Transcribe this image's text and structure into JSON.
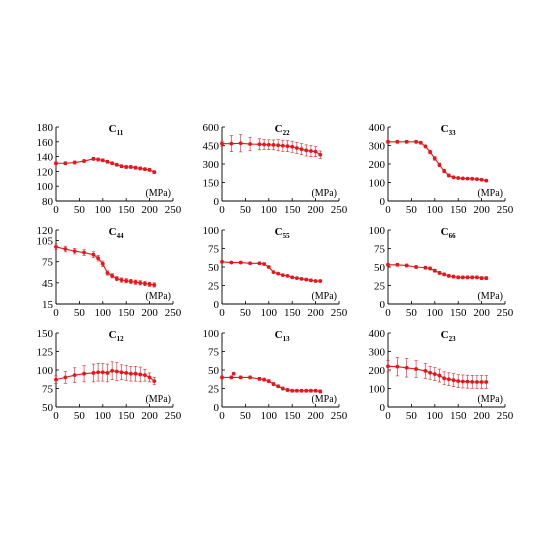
{
  "colors": {
    "series": "#e8151b",
    "error": "#e8151b",
    "axis": "#000000"
  },
  "chart_data": [
    {
      "type": "line",
      "title": "C",
      "subscript": "11",
      "xlabel": "(MPa)",
      "xlim": [
        0,
        250
      ],
      "xticks": [
        0,
        50,
        100,
        150,
        200,
        250
      ],
      "ylim": [
        80,
        180
      ],
      "yticks": [
        80,
        100,
        120,
        140,
        160,
        180
      ],
      "grid": false,
      "legend": "none",
      "series": [
        {
          "x": [
            0,
            20,
            40,
            60,
            80,
            90,
            100,
            110,
            120,
            130,
            140,
            150,
            160,
            170,
            180,
            190,
            200,
            210
          ],
          "y": [
            131,
            131,
            132,
            134,
            137,
            136,
            135,
            133,
            131,
            129,
            127,
            126,
            126,
            125,
            124,
            123,
            122,
            119
          ],
          "err": [
            2,
            2,
            2,
            2,
            2,
            2,
            2,
            2,
            2,
            2,
            2,
            2,
            2,
            2,
            2,
            2,
            2,
            2
          ]
        }
      ]
    },
    {
      "type": "line",
      "title": "C",
      "subscript": "22",
      "xlabel": "(MPa)",
      "xlim": [
        0,
        250
      ],
      "xticks": [
        0,
        50,
        100,
        150,
        200,
        250
      ],
      "ylim": [
        0,
        600
      ],
      "yticks": [
        0,
        150,
        300,
        450,
        600
      ],
      "grid": false,
      "legend": "none",
      "series": [
        {
          "x": [
            0,
            20,
            40,
            60,
            80,
            90,
            100,
            110,
            120,
            130,
            140,
            150,
            160,
            170,
            180,
            190,
            200,
            210
          ],
          "y": [
            465,
            465,
            468,
            462,
            460,
            458,
            456,
            455,
            452,
            448,
            445,
            440,
            430,
            420,
            410,
            405,
            400,
            375
          ],
          "err": [
            20,
            65,
            70,
            55,
            45,
            40,
            40,
            40,
            45,
            45,
            45,
            45,
            45,
            45,
            45,
            45,
            40,
            30
          ]
        }
      ]
    },
    {
      "type": "line",
      "title": "C",
      "subscript": "33",
      "xlabel": "(MPa)",
      "xlim": [
        0,
        250
      ],
      "xticks": [
        0,
        50,
        100,
        150,
        200,
        250
      ],
      "ylim": [
        0,
        400
      ],
      "yticks": [
        0,
        100,
        200,
        300,
        400
      ],
      "grid": false,
      "legend": "none",
      "series": [
        {
          "x": [
            0,
            20,
            40,
            60,
            70,
            80,
            90,
            100,
            110,
            120,
            130,
            140,
            150,
            160,
            170,
            180,
            190,
            200,
            210
          ],
          "y": [
            320,
            320,
            320,
            320,
            315,
            295,
            265,
            230,
            195,
            162,
            138,
            128,
            124,
            122,
            121,
            120,
            118,
            115,
            110
          ],
          "err": [
            8,
            8,
            8,
            8,
            8,
            8,
            10,
            10,
            10,
            10,
            8,
            6,
            6,
            6,
            6,
            6,
            6,
            6,
            6
          ]
        }
      ]
    },
    {
      "type": "line",
      "title": "C",
      "subscript": "44",
      "xlabel": "(MPa)",
      "xlim": [
        0,
        250
      ],
      "xticks": [
        0,
        50,
        100,
        150,
        200,
        250
      ],
      "ylim": [
        15,
        120
      ],
      "yticks": [
        15,
        45,
        75,
        105,
        120
      ],
      "grid": false,
      "legend": "none",
      "series": [
        {
          "x": [
            0,
            20,
            40,
            60,
            80,
            90,
            100,
            110,
            120,
            130,
            140,
            150,
            160,
            170,
            180,
            190,
            200,
            210
          ],
          "y": [
            96,
            93,
            90,
            88,
            85,
            80,
            72,
            59,
            55,
            51,
            49,
            48,
            47,
            46,
            45,
            44,
            43,
            42
          ],
          "err": [
            4,
            4,
            4,
            4,
            4,
            4,
            4,
            3,
            3,
            3,
            3,
            3,
            3,
            3,
            3,
            3,
            3,
            3
          ]
        }
      ]
    },
    {
      "type": "line",
      "title": "C",
      "subscript": "55",
      "xlabel": "(MPa)",
      "xlim": [
        0,
        250
      ],
      "xticks": [
        0,
        50,
        100,
        150,
        200,
        250
      ],
      "ylim": [
        0,
        100
      ],
      "yticks": [
        0,
        25,
        50,
        75,
        100
      ],
      "grid": false,
      "legend": "none",
      "series": [
        {
          "x": [
            0,
            20,
            40,
            60,
            80,
            90,
            100,
            110,
            120,
            130,
            140,
            150,
            160,
            170,
            180,
            190,
            200,
            210
          ],
          "y": [
            57,
            56,
            56,
            55,
            55,
            54,
            50,
            43,
            41,
            39,
            38,
            36,
            35,
            34,
            33,
            32,
            31,
            31
          ],
          "err": [
            1.5,
            1.5,
            1.5,
            1.5,
            1.5,
            1.5,
            1.5,
            1.5,
            1.5,
            1.5,
            1.5,
            1.5,
            1.5,
            1.5,
            1.5,
            1.5,
            1.5,
            1.5
          ]
        }
      ]
    },
    {
      "type": "line",
      "title": "C",
      "subscript": "66",
      "xlabel": "(MPa)",
      "xlim": [
        0,
        250
      ],
      "xticks": [
        0,
        50,
        100,
        150,
        200,
        250
      ],
      "ylim": [
        0,
        100
      ],
      "yticks": [
        0,
        25,
        50,
        75,
        100
      ],
      "grid": false,
      "legend": "none",
      "series": [
        {
          "x": [
            0,
            20,
            40,
            60,
            80,
            90,
            100,
            110,
            120,
            130,
            140,
            150,
            160,
            170,
            180,
            190,
            200,
            210
          ],
          "y": [
            53,
            53,
            52,
            50,
            49,
            48,
            45,
            42,
            40,
            38,
            37,
            36,
            36,
            36,
            36,
            36,
            35,
            35
          ],
          "err": [
            2,
            2,
            2,
            2,
            2,
            2,
            2,
            2,
            2,
            2,
            2,
            2,
            2,
            2,
            2,
            2,
            2,
            2
          ]
        }
      ]
    },
    {
      "type": "line",
      "title": "C",
      "subscript": "12",
      "xlabel": "(MPa)",
      "xlim": [
        0,
        250
      ],
      "xticks": [
        0,
        50,
        100,
        150,
        200,
        250
      ],
      "ylim": [
        50,
        150
      ],
      "yticks": [
        50,
        75,
        100,
        125,
        150
      ],
      "grid": false,
      "legend": "none",
      "series": [
        {
          "x": [
            0,
            20,
            40,
            60,
            80,
            90,
            100,
            110,
            120,
            130,
            140,
            150,
            160,
            170,
            180,
            190,
            200,
            210
          ],
          "y": [
            87,
            90,
            93,
            95,
            96,
            97,
            97,
            96,
            99,
            98,
            97,
            96,
            95,
            95,
            94,
            93,
            90,
            85
          ],
          "err": [
            5,
            8,
            10,
            11,
            12,
            12,
            12,
            12,
            12,
            12,
            10,
            10,
            10,
            10,
            10,
            8,
            6,
            5
          ]
        }
      ]
    },
    {
      "type": "line",
      "title": "C",
      "subscript": "13",
      "xlabel": "(MPa)",
      "xlim": [
        0,
        250
      ],
      "xticks": [
        0,
        50,
        100,
        150,
        200,
        250
      ],
      "ylim": [
        0,
        100
      ],
      "yticks": [
        0,
        25,
        50,
        75,
        100
      ],
      "grid": false,
      "legend": "none",
      "series": [
        {
          "x": [
            0,
            20,
            40,
            60,
            80,
            90,
            100,
            110,
            120,
            130,
            140,
            150,
            160,
            170,
            180,
            190,
            200,
            210
          ],
          "y": [
            40,
            40,
            40,
            40,
            38,
            37,
            35,
            31,
            28,
            25,
            23,
            22,
            22,
            22,
            22,
            22,
            22,
            21
          ],
          "err": [
            2,
            2,
            2,
            2,
            2,
            2,
            2,
            2,
            2,
            2,
            2,
            2,
            2,
            2,
            2,
            2,
            2,
            2
          ]
        }
      ],
      "extra_points": [
        {
          "x": 25,
          "y": 45
        }
      ]
    },
    {
      "type": "line",
      "title": "C",
      "subscript": "23",
      "xlabel": "(MPa)",
      "xlim": [
        0,
        250
      ],
      "xticks": [
        0,
        50,
        100,
        150,
        200,
        250
      ],
      "ylim": [
        0,
        400
      ],
      "yticks": [
        0,
        100,
        200,
        300,
        400
      ],
      "grid": false,
      "legend": "none",
      "series": [
        {
          "x": [
            0,
            20,
            40,
            60,
            80,
            90,
            100,
            110,
            120,
            130,
            140,
            150,
            160,
            170,
            180,
            190,
            200,
            210
          ],
          "y": [
            220,
            218,
            212,
            205,
            195,
            185,
            178,
            170,
            155,
            150,
            145,
            140,
            138,
            137,
            136,
            135,
            135,
            135
          ],
          "err": [
            30,
            50,
            50,
            45,
            40,
            35,
            35,
            35,
            35,
            35,
            35,
            35,
            35,
            35,
            35,
            35,
            35,
            35
          ]
        }
      ]
    }
  ]
}
